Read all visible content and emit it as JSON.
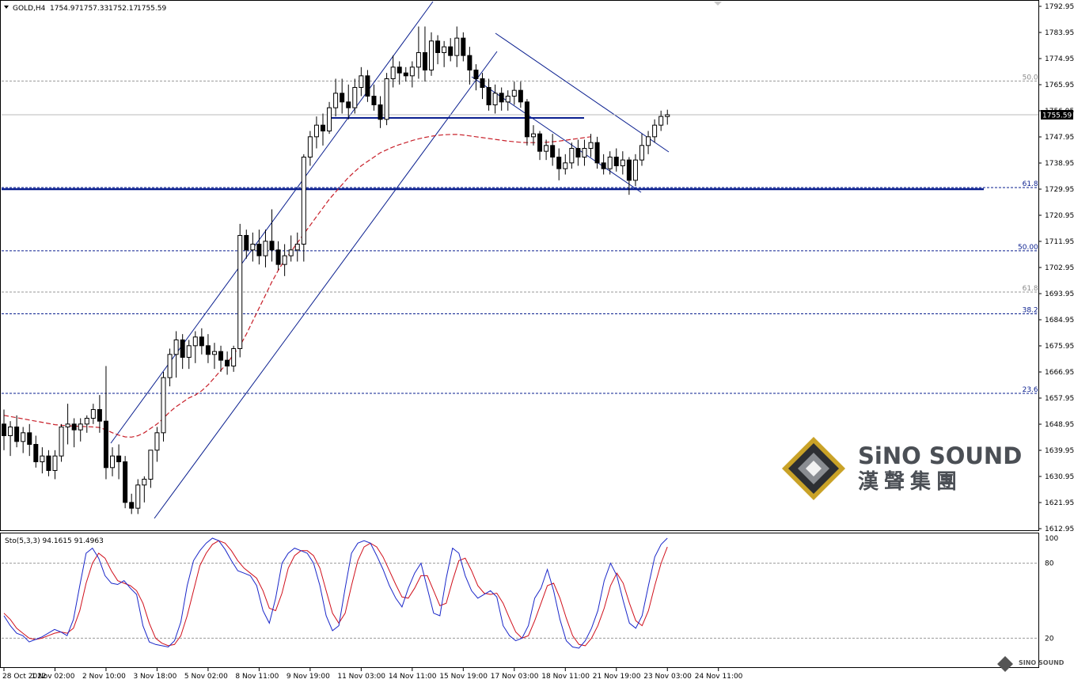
{
  "header": {
    "symbol": "GOLD,H4",
    "open": "1754.97",
    "high": "1757.33",
    "low": "1752.17",
    "close": "1755.59"
  },
  "stochastic": {
    "label": "Sto(5,3,3) 94.1615 91.4963",
    "levels": [
      "100",
      "80",
      "20"
    ],
    "main": [
      38,
      30,
      24,
      22,
      17,
      19,
      21,
      24,
      27,
      25,
      22,
      35,
      62,
      88,
      92,
      84,
      70,
      64,
      63,
      66,
      60,
      55,
      30,
      17,
      15,
      14,
      13,
      18,
      33,
      62,
      82,
      90,
      96,
      100,
      98,
      91,
      82,
      74,
      72,
      70,
      62,
      42,
      32,
      52,
      80,
      88,
      92,
      90,
      88,
      80,
      62,
      38,
      26,
      30,
      60,
      88,
      96,
      98,
      96,
      86,
      75,
      62,
      52,
      45,
      60,
      72,
      80,
      60,
      40,
      38,
      68,
      92,
      88,
      70,
      58,
      52,
      55,
      58,
      53,
      30,
      22,
      18,
      20,
      30,
      52,
      60,
      75,
      58,
      35,
      18,
      13,
      12,
      18,
      28,
      42,
      66,
      80,
      70,
      50,
      32,
      28,
      38,
      62,
      85,
      95,
      100
    ],
    "signal": [
      40,
      35,
      28,
      24,
      20,
      19,
      20,
      22,
      24,
      25,
      24,
      28,
      42,
      64,
      80,
      88,
      84,
      74,
      66,
      64,
      62,
      58,
      48,
      32,
      20,
      16,
      14,
      15,
      22,
      38,
      58,
      78,
      88,
      95,
      98,
      96,
      90,
      82,
      76,
      72,
      68,
      58,
      44,
      42,
      56,
      76,
      86,
      90,
      90,
      86,
      76,
      58,
      40,
      32,
      40,
      62,
      82,
      93,
      96,
      93,
      85,
      74,
      63,
      53,
      52,
      60,
      70,
      70,
      58,
      46,
      48,
      66,
      82,
      84,
      74,
      62,
      56,
      55,
      56,
      48,
      36,
      25,
      20,
      22,
      34,
      48,
      62,
      64,
      52,
      36,
      22,
      15,
      14,
      20,
      30,
      44,
      62,
      72,
      64,
      48,
      34,
      30,
      42,
      62,
      80,
      93
    ]
  },
  "watermark": {
    "brand_en": "SiNO SOUND",
    "brand_zh": "漢聲集團",
    "corner_brand": "SINO SOUND"
  },
  "chart_data": {
    "type": "candlestick",
    "title": "GOLD,H4",
    "x_tick_labels": [
      "28 Oct 2022",
      "1 Nov 02:00",
      "2 Nov 10:00",
      "3 Nov 18:00",
      "5 Nov 02:00",
      "8 Nov 11:00",
      "9 Nov 19:00",
      "11 Nov 03:00",
      "14 Nov 11:00",
      "15 Nov 19:00",
      "17 Nov 03:00",
      "18 Nov 11:00",
      "21 Nov 19:00",
      "23 Nov 03:00",
      "24 Nov 11:00"
    ],
    "x_tick_bar_index": [
      0,
      8,
      16,
      24,
      32,
      40,
      48,
      56,
      64,
      72,
      80,
      88,
      96,
      104,
      112
    ],
    "price_tick_labels": [
      "1792.95",
      "1783.95",
      "1774.95",
      "1765.95",
      "1756.95",
      "1747.95",
      "1738.95",
      "1729.95",
      "1720.95",
      "1711.95",
      "1702.95",
      "1693.95",
      "1684.95",
      "1675.95",
      "1666.95",
      "1657.95",
      "1648.95",
      "1639.95",
      "1630.95",
      "1621.95",
      "1612.95"
    ],
    "ylim": [
      1611.5,
      1794.5
    ],
    "current_price": "1755.59",
    "ohlc": [
      [
        1649,
        1654,
        1640,
        1645
      ],
      [
        1645,
        1650,
        1638,
        1648
      ],
      [
        1648,
        1652,
        1641,
        1643
      ],
      [
        1643,
        1648,
        1639,
        1646
      ],
      [
        1646,
        1649,
        1638,
        1642
      ],
      [
        1642,
        1645,
        1634,
        1636
      ],
      [
        1636,
        1641,
        1632,
        1638
      ],
      [
        1638,
        1640,
        1631,
        1633
      ],
      [
        1633,
        1640,
        1630,
        1638
      ],
      [
        1638,
        1649,
        1636,
        1648
      ],
      [
        1648,
        1656,
        1642,
        1649
      ],
      [
        1649,
        1651,
        1641,
        1647
      ],
      [
        1647,
        1651,
        1643,
        1649
      ],
      [
        1649,
        1652,
        1646,
        1651
      ],
      [
        1651,
        1656,
        1649,
        1654
      ],
      [
        1654,
        1659,
        1646,
        1650
      ],
      [
        1650,
        1669,
        1630,
        1634
      ],
      [
        1634,
        1641,
        1631,
        1638
      ],
      [
        1638,
        1642,
        1630,
        1636
      ],
      [
        1636,
        1638,
        1620,
        1622
      ],
      [
        1622,
        1625,
        1618,
        1620
      ],
      [
        1620,
        1630,
        1618,
        1628
      ],
      [
        1628,
        1631,
        1622,
        1630
      ],
      [
        1630,
        1640,
        1627,
        1640
      ],
      [
        1640,
        1648,
        1636,
        1646
      ],
      [
        1646,
        1667,
        1643,
        1665
      ],
      [
        1665,
        1675,
        1662,
        1673
      ],
      [
        1673,
        1681,
        1665,
        1678
      ],
      [
        1678,
        1680,
        1668,
        1672
      ],
      [
        1672,
        1678,
        1668,
        1676
      ],
      [
        1676,
        1681,
        1670,
        1679
      ],
      [
        1679,
        1682,
        1673,
        1676
      ],
      [
        1676,
        1680,
        1670,
        1673
      ],
      [
        1673,
        1677,
        1668,
        1674
      ],
      [
        1674,
        1676,
        1667,
        1671
      ],
      [
        1671,
        1674,
        1666,
        1669
      ],
      [
        1669,
        1676,
        1667,
        1675
      ],
      [
        1675,
        1718,
        1672,
        1714
      ],
      [
        1714,
        1716,
        1706,
        1709
      ],
      [
        1709,
        1715,
        1705,
        1711
      ],
      [
        1711,
        1716,
        1704,
        1707
      ],
      [
        1707,
        1716,
        1703,
        1712
      ],
      [
        1712,
        1723,
        1705,
        1709
      ],
      [
        1709,
        1712,
        1702,
        1704
      ],
      [
        1704,
        1711,
        1700,
        1707
      ],
      [
        1707,
        1714,
        1705,
        1709
      ],
      [
        1709,
        1715,
        1705,
        1711
      ],
      [
        1711,
        1742,
        1705,
        1741
      ],
      [
        1741,
        1750,
        1738,
        1748
      ],
      [
        1748,
        1755,
        1744,
        1752
      ],
      [
        1752,
        1756,
        1745,
        1750
      ],
      [
        1750,
        1760,
        1749,
        1758
      ],
      [
        1758,
        1768,
        1755,
        1763
      ],
      [
        1763,
        1768,
        1756,
        1760
      ],
      [
        1760,
        1766,
        1754,
        1758
      ],
      [
        1758,
        1768,
        1756,
        1765
      ],
      [
        1765,
        1772,
        1762,
        1769
      ],
      [
        1769,
        1771,
        1760,
        1762
      ],
      [
        1762,
        1766,
        1757,
        1759
      ],
      [
        1759,
        1762,
        1751,
        1754
      ],
      [
        1754,
        1770,
        1752,
        1768
      ],
      [
        1768,
        1776,
        1765,
        1772
      ],
      [
        1772,
        1774,
        1766,
        1770
      ],
      [
        1770,
        1772,
        1767,
        1769
      ],
      [
        1769,
        1774,
        1765,
        1772
      ],
      [
        1772,
        1786,
        1768,
        1777
      ],
      [
        1777,
        1786,
        1767,
        1771
      ],
      [
        1771,
        1784,
        1769,
        1781
      ],
      [
        1781,
        1783,
        1773,
        1777
      ],
      [
        1777,
        1781,
        1772,
        1779
      ],
      [
        1779,
        1782,
        1774,
        1776
      ],
      [
        1776,
        1786,
        1772,
        1782
      ],
      [
        1782,
        1784,
        1774,
        1776
      ],
      [
        1776,
        1779,
        1766,
        1771
      ],
      [
        1771,
        1773,
        1764,
        1768
      ],
      [
        1768,
        1770,
        1761,
        1765
      ],
      [
        1765,
        1768,
        1757,
        1759
      ],
      [
        1759,
        1766,
        1756,
        1763
      ],
      [
        1763,
        1765,
        1757,
        1760
      ],
      [
        1760,
        1764,
        1757,
        1762
      ],
      [
        1762,
        1767,
        1759,
        1764
      ],
      [
        1764,
        1767,
        1758,
        1760
      ],
      [
        1760,
        1761,
        1745,
        1748
      ],
      [
        1748,
        1752,
        1745,
        1749
      ],
      [
        1749,
        1750,
        1740,
        1743
      ],
      [
        1743,
        1747,
        1740,
        1745
      ],
      [
        1745,
        1749,
        1738,
        1741
      ],
      [
        1741,
        1744,
        1733,
        1737
      ],
      [
        1737,
        1742,
        1735,
        1739
      ],
      [
        1739,
        1746,
        1737,
        1744
      ],
      [
        1744,
        1747,
        1738,
        1741
      ],
      [
        1741,
        1747,
        1738,
        1744
      ],
      [
        1744,
        1749,
        1741,
        1746
      ],
      [
        1746,
        1748,
        1737,
        1739
      ],
      [
        1739,
        1742,
        1735,
        1737
      ],
      [
        1737,
        1743,
        1735,
        1741
      ],
      [
        1741,
        1744,
        1736,
        1738
      ],
      [
        1738,
        1743,
        1735,
        1740
      ],
      [
        1740,
        1741,
        1728,
        1733
      ],
      [
        1733,
        1742,
        1731,
        1740
      ],
      [
        1740,
        1749,
        1738,
        1745
      ],
      [
        1745,
        1750,
        1742,
        1748
      ],
      [
        1748,
        1754,
        1746,
        1752
      ],
      [
        1752,
        1757,
        1750,
        1755
      ],
      [
        1754.97,
        1757.33,
        1752.17,
        1755.59
      ]
    ],
    "moving_average": [
      1652,
      1651.6,
      1651.2,
      1650.8,
      1650.4,
      1650,
      1649.6,
      1649.2,
      1648.8,
      1648.6,
      1648.4,
      1648.3,
      1648.2,
      1648.1,
      1648,
      1647.8,
      1647,
      1646,
      1645.2,
      1644.6,
      1644.5,
      1645,
      1646,
      1647.5,
      1649,
      1651,
      1653.2,
      1655,
      1656.5,
      1658,
      1659,
      1660.5,
      1662.5,
      1665,
      1667.5,
      1670,
      1673,
      1676,
      1680,
      1684.5,
      1689,
      1693.5,
      1698,
      1702,
      1705.5,
      1708.5,
      1711.5,
      1714.5,
      1717.5,
      1720.5,
      1723.5,
      1726.5,
      1729,
      1731.5,
      1734,
      1736,
      1738,
      1739.5,
      1741,
      1742.5,
      1743.5,
      1744.5,
      1745.3,
      1746,
      1746.7,
      1747.3,
      1747.8,
      1748.2,
      1748.5,
      1748.7,
      1748.8,
      1748.8,
      1748.6,
      1748.3,
      1748,
      1747.7,
      1747.4,
      1747.1,
      1746.8,
      1746.5,
      1746.3,
      1746.1,
      1746,
      1746,
      1746,
      1746.1,
      1746.3,
      1746.5,
      1746.8,
      1747.1,
      1747.4,
      1747.7,
      1748
    ],
    "horizontal_levels": [
      {
        "price": 1767.2,
        "label": "50.0"
      },
      {
        "price": 1730.5,
        "label": "61.8"
      },
      {
        "price": 1708.7,
        "label": "50.00"
      },
      {
        "price": 1694.5,
        "label": "61.8"
      },
      {
        "price": 1687.0,
        "label": "38.2"
      },
      {
        "price": 1659.6,
        "label": "23.6"
      }
    ],
    "grid": false,
    "legend": "none"
  }
}
